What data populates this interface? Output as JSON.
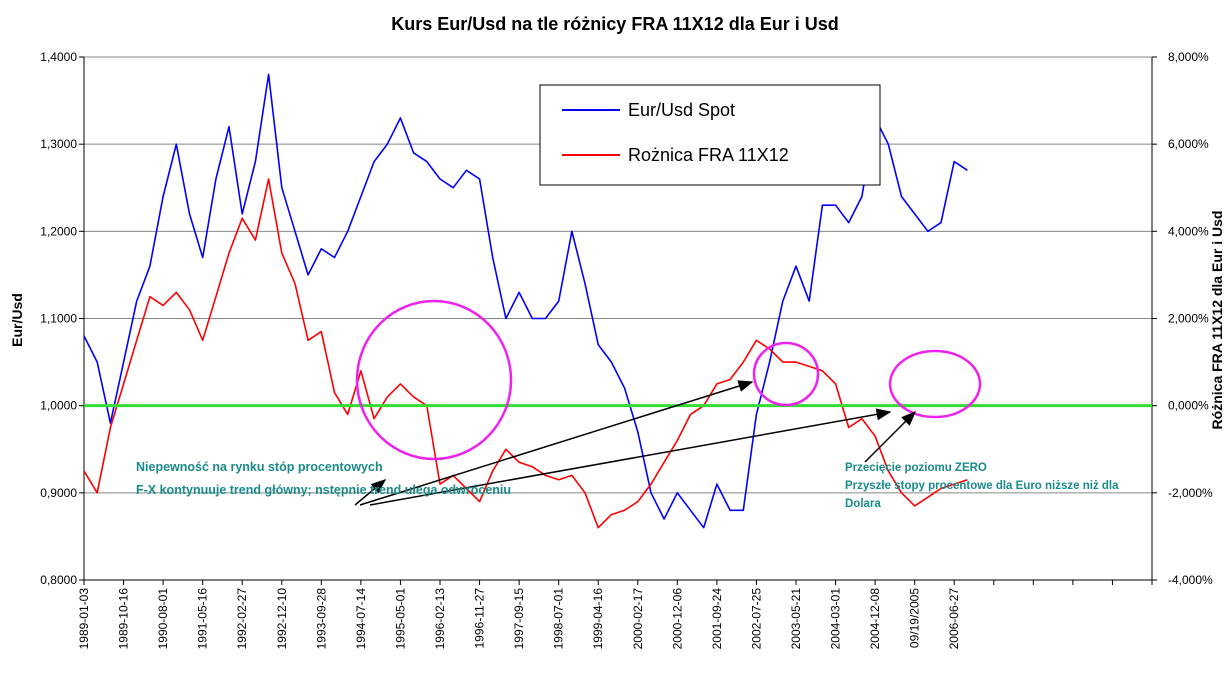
{
  "chart_data": {
    "type": "line",
    "title": "Kurs Eur/Usd na tle różnicy FRA 11X12 dla Eur i Usd",
    "y_label": "Eur/Usd",
    "y2_label": "Różnica FRA 11X12 dla Eur i Usd",
    "categories": [
      "1989-01-03",
      null,
      null,
      "1989-10-16",
      null,
      null,
      "1990-08-01",
      null,
      null,
      "1991-05-16",
      null,
      null,
      "1992-02-27",
      null,
      null,
      "1992-12-10",
      null,
      null,
      "1993-09-28",
      null,
      null,
      "1994-07-14",
      null,
      null,
      "1995-05-01",
      null,
      null,
      "1996-02-13",
      null,
      null,
      "1996-11-27",
      null,
      null,
      "1997-09-15",
      null,
      null,
      "1998-07-01",
      null,
      null,
      "1999-04-16",
      null,
      null,
      "2000-02-17",
      null,
      null,
      "2000-12-06",
      null,
      null,
      "2001-09-24",
      null,
      null,
      "2002-07-25",
      null,
      null,
      "2003-05-21",
      null,
      null,
      "2004-03-01",
      null,
      null,
      "2004-12-08",
      null,
      null,
      "09/19/2005",
      null,
      null,
      "2006-06-27",
      null,
      null,
      null,
      null,
      null,
      null,
      null,
      null,
      null,
      null,
      null,
      null,
      null,
      null,
      null
    ],
    "series": [
      {
        "name": "Eur/Usd Spot",
        "color": "#0000ff",
        "axis": "y",
        "values": [
          1.08,
          1.05,
          0.98,
          1.05,
          1.12,
          1.16,
          1.24,
          1.3,
          1.22,
          1.17,
          1.26,
          1.32,
          1.22,
          1.28,
          1.38,
          1.25,
          1.2,
          1.15,
          1.18,
          1.17,
          1.2,
          1.24,
          1.28,
          1.3,
          1.33,
          1.29,
          1.28,
          1.26,
          1.25,
          1.27,
          1.26,
          1.17,
          1.1,
          1.13,
          1.1,
          1.1,
          1.12,
          1.2,
          1.14,
          1.07,
          1.05,
          1.02,
          0.97,
          0.9,
          0.87,
          0.9,
          0.88,
          0.86,
          0.91,
          0.88,
          0.88,
          0.99,
          1.05,
          1.12,
          1.16,
          1.12,
          1.23,
          1.23,
          1.21,
          1.24,
          1.33,
          1.3,
          1.24,
          1.22,
          1.2,
          1.21,
          1.28,
          1.27,
          null,
          null,
          null,
          null,
          null,
          null,
          null,
          null,
          null,
          null,
          null,
          null,
          null,
          null
        ]
      },
      {
        "name": "Rożnica FRA 11X12",
        "color": "#ff0000",
        "axis": "y2",
        "values": [
          -1.5,
          -2.0,
          -0.5,
          0.5,
          1.5,
          2.5,
          2.3,
          2.6,
          2.2,
          1.5,
          2.5,
          3.5,
          4.3,
          3.8,
          5.2,
          3.5,
          2.8,
          1.5,
          1.7,
          0.3,
          -0.2,
          0.8,
          -0.3,
          0.2,
          0.5,
          0.2,
          0.0,
          -1.8,
          -1.6,
          -1.9,
          -2.2,
          -1.5,
          -1.0,
          -1.3,
          -1.4,
          -1.6,
          -1.7,
          -1.6,
          -2.0,
          -2.8,
          -2.5,
          -2.4,
          -2.2,
          -1.8,
          -1.3,
          -0.8,
          -0.2,
          0.0,
          0.5,
          0.6,
          1.0,
          1.5,
          1.3,
          1.0,
          1.0,
          0.9,
          0.8,
          0.5,
          -0.5,
          -0.3,
          -0.7,
          -1.5,
          -2.0,
          -2.3,
          -2.1,
          -1.9,
          -1.8,
          -1.7,
          null,
          null,
          null,
          null,
          null,
          null,
          null,
          null,
          null,
          null,
          null,
          null,
          null,
          null
        ]
      }
    ],
    "ylim": [
      0.8,
      1.4
    ],
    "yticks": [
      {
        "value": 0.8,
        "label": "0,8000"
      },
      {
        "value": 0.9,
        "label": "0,9000"
      },
      {
        "value": 1.0,
        "label": "1,0000"
      },
      {
        "value": 1.1,
        "label": "1,1000"
      },
      {
        "value": 1.2,
        "label": "1,2000"
      },
      {
        "value": 1.3,
        "label": "1,3000"
      },
      {
        "value": 1.4,
        "label": "1,4000"
      }
    ],
    "y2lim": [
      -4,
      8
    ],
    "y2ticks": [
      {
        "value": -4,
        "label": "-4,000%"
      },
      {
        "value": -2,
        "label": "-2,000%"
      },
      {
        "value": 0,
        "label": "0,000%"
      },
      {
        "value": 2,
        "label": "2,000%"
      },
      {
        "value": 4,
        "label": "4,000%"
      },
      {
        "value": 6,
        "label": "6,000%"
      },
      {
        "value": 8,
        "label": "8,000%"
      }
    ],
    "grid": true,
    "reference_line": {
      "value": 1.0,
      "color": "#33dd33"
    },
    "annotations": [
      "Niepewność na rynku stóp procentowych",
      "F-X kontynuuje trend główny; nstępnie trend ulega odwróceniu",
      "Przecięcie poziomu ZERO",
      "Przyszłe stopy procentowe dla Euro niższe niż dla",
      "Dolara"
    ]
  }
}
